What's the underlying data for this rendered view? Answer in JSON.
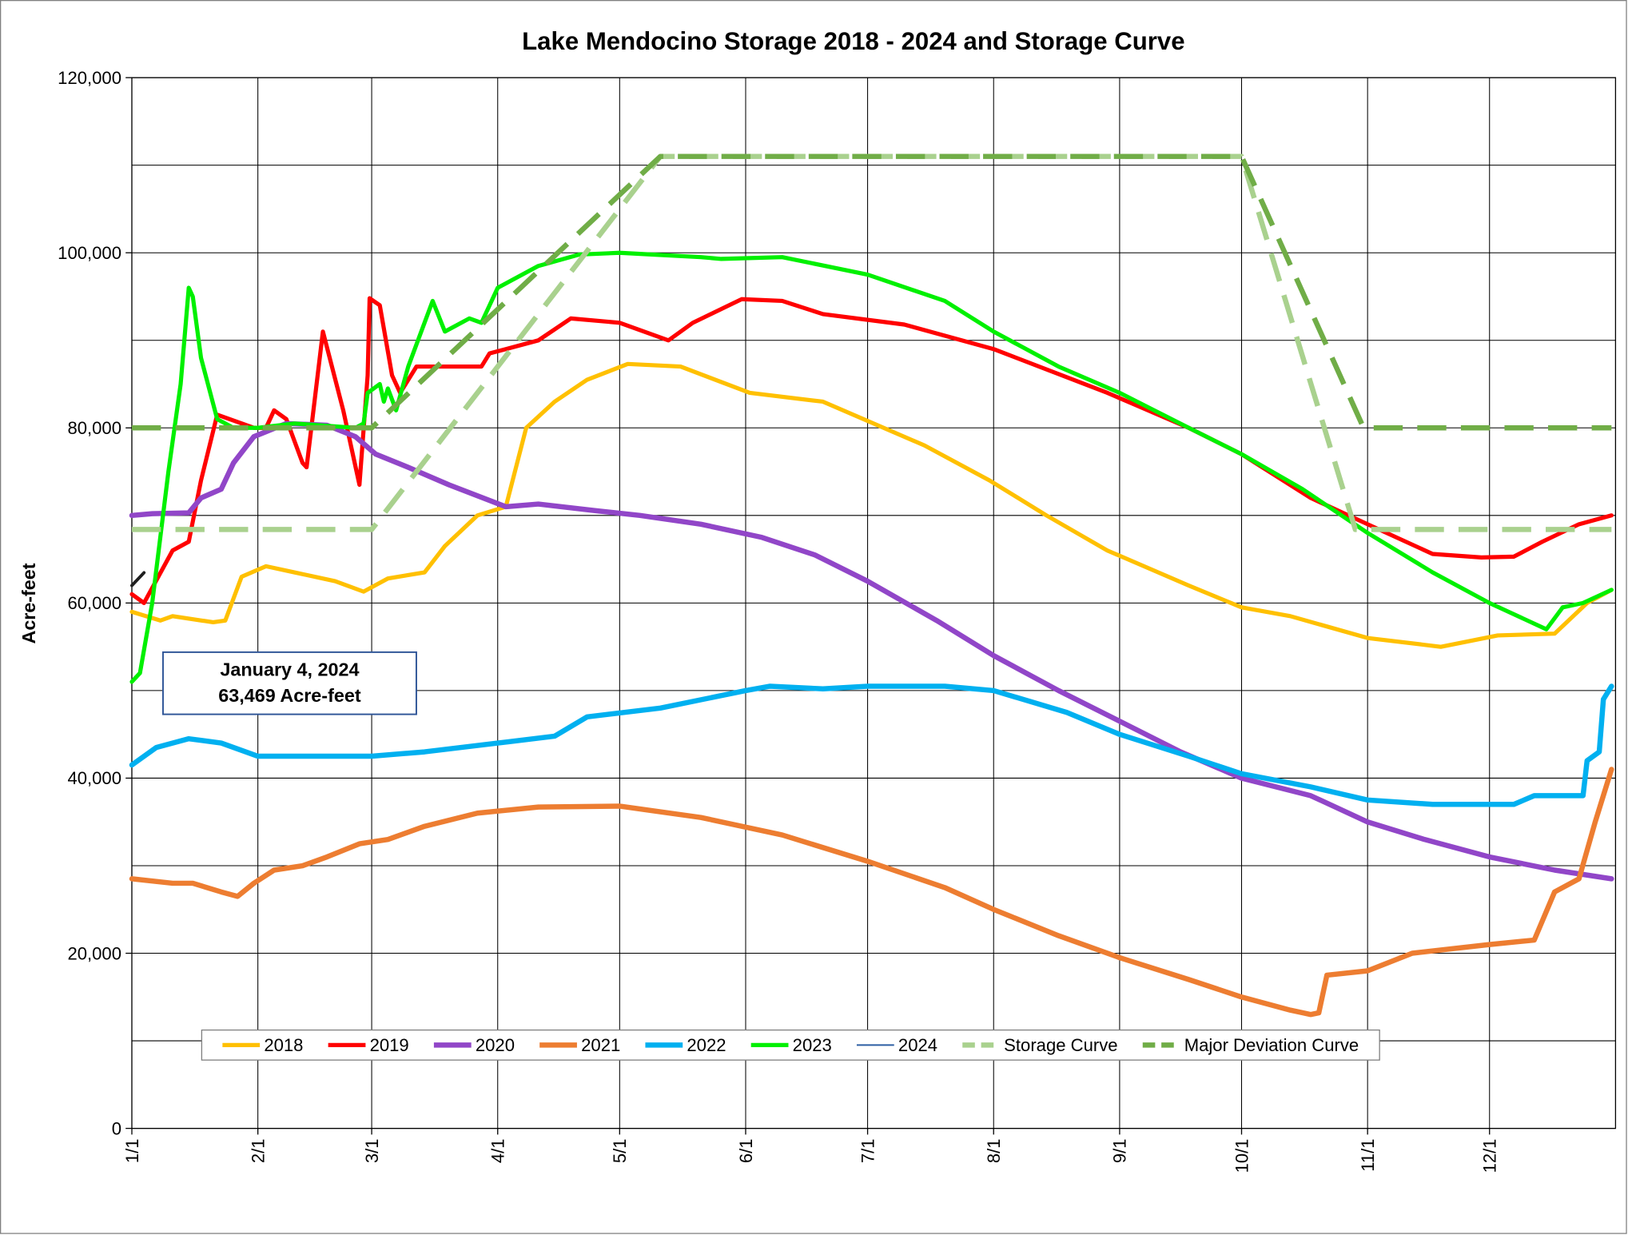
{
  "chart_data": {
    "type": "line",
    "title": "Lake Mendocino Storage 2018 - 2024 and Storage Curve",
    "y_label": "Acre-feet",
    "xlim": [
      0,
      365
    ],
    "xticks": [
      {
        "value": 0,
        "label": "1/1"
      },
      {
        "value": 31,
        "label": "2/1"
      },
      {
        "value": 59,
        "label": "3/1"
      },
      {
        "value": 90,
        "label": "4/1"
      },
      {
        "value": 120,
        "label": "5/1"
      },
      {
        "value": 151,
        "label": "6/1"
      },
      {
        "value": 181,
        "label": "7/1"
      },
      {
        "value": 212,
        "label": "8/1"
      },
      {
        "value": 243,
        "label": "9/1"
      },
      {
        "value": 273,
        "label": "10/1"
      },
      {
        "value": 304,
        "label": "11/1"
      },
      {
        "value": 334,
        "label": "12/1"
      }
    ],
    "ylim": [
      0,
      120000
    ],
    "yticks": [
      0,
      {
        "value": 20000,
        "label": "20,000"
      },
      {
        "value": 40000,
        "label": "40,000"
      },
      {
        "value": 60000,
        "label": "60,000"
      },
      {
        "value": 80000,
        "label": "80,000"
      },
      {
        "value": 100000,
        "label": "100,000"
      },
      {
        "value": 120000,
        "label": "120,000"
      }
    ],
    "minor_ygrid": [
      10000,
      30000,
      50000,
      70000,
      90000,
      110000
    ],
    "grid": true,
    "legend": "bottom",
    "annotation": {
      "date": "January 4, 2024",
      "text": "63,469 Acre-feet"
    },
    "series": [
      {
        "name": "2018",
        "color": "#ffc000",
        "width": 4,
        "x": [
          0,
          7,
          10,
          20,
          23,
          27,
          33,
          40,
          50,
          57,
          63,
          72,
          77,
          85,
          92,
          97,
          104,
          112,
          122,
          135,
          152,
          170,
          180,
          195,
          211,
          225,
          240,
          260,
          273,
          285,
          304,
          322,
          336,
          350,
          358,
          364
        ],
        "values": [
          59000,
          58000,
          58500,
          57800,
          58000,
          63000,
          64200,
          63500,
          62500,
          61300,
          62800,
          63500,
          66500,
          70000,
          71000,
          80000,
          83000,
          85500,
          87300,
          87000,
          84000,
          83000,
          81000,
          78000,
          74000,
          70000,
          66000,
          62000,
          59500,
          58500,
          56000,
          55000,
          56300,
          56500,
          60000,
          61500
        ]
      },
      {
        "name": "2019",
        "color": "#ff0000",
        "width": 4,
        "x": [
          0,
          3,
          10,
          14,
          17,
          21,
          30,
          33,
          35,
          38,
          42,
          43,
          47,
          52,
          56,
          58,
          58.5,
          61,
          64,
          66,
          70,
          80,
          86,
          88,
          92,
          100,
          108,
          120,
          132,
          138,
          150,
          160,
          170,
          190,
          212,
          240,
          260,
          273,
          290,
          304,
          320,
          332,
          340,
          347,
          356,
          364
        ],
        "values": [
          61000,
          60000,
          66000,
          67000,
          74000,
          81500,
          80000,
          80000,
          82000,
          81000,
          76000,
          75500,
          91000,
          82000,
          73500,
          86000,
          94800,
          94000,
          86000,
          84000,
          87000,
          87000,
          87000,
          88500,
          89000,
          90000,
          92500,
          92000,
          90000,
          92000,
          94700,
          94500,
          93000,
          91800,
          89000,
          84000,
          80000,
          77000,
          72000,
          69000,
          65600,
          65200,
          65300,
          67000,
          69000,
          70000
        ]
      },
      {
        "name": "2020",
        "color": "#9146c8",
        "width": 5,
        "x": [
          0,
          5,
          14,
          17,
          22,
          25,
          30,
          38,
          48,
          55,
          60,
          68,
          78,
          92,
          100,
          115,
          125,
          140,
          155,
          168,
          181,
          198,
          212,
          228,
          243,
          258,
          273,
          290,
          304,
          318,
          334,
          350,
          364
        ],
        "values": [
          70000,
          70200,
          70300,
          72000,
          73000,
          76000,
          79000,
          80500,
          80300,
          79000,
          77000,
          75500,
          73500,
          71000,
          71300,
          70500,
          70000,
          69000,
          67500,
          65500,
          62500,
          58000,
          54000,
          50000,
          46500,
          43000,
          40000,
          38000,
          35000,
          33000,
          31000,
          29500,
          28500
        ]
      },
      {
        "name": "2021",
        "color": "#ed7d31",
        "width": 5,
        "x": [
          0,
          10,
          15,
          22,
          26,
          30,
          35,
          42,
          48,
          56,
          63,
          72,
          85,
          100,
          120,
          140,
          160,
          181,
          200,
          212,
          228,
          243,
          260,
          273,
          285,
          290,
          292,
          294,
          304,
          315,
          334,
          345,
          350,
          356,
          360,
          364
        ],
        "values": [
          28500,
          28000,
          28000,
          27000,
          26500,
          28000,
          29500,
          30000,
          31000,
          32500,
          33000,
          34500,
          36000,
          36700,
          36800,
          35500,
          33500,
          30500,
          27500,
          25000,
          22000,
          19500,
          17000,
          15000,
          13500,
          13000,
          13200,
          17500,
          18000,
          20000,
          21000,
          21500,
          27000,
          28500,
          35000,
          41000
        ]
      },
      {
        "name": "2022",
        "color": "#00b0f0",
        "width": 5,
        "x": [
          0,
          6,
          14,
          22,
          31,
          50,
          59,
          72,
          90,
          104,
          112,
          130,
          151,
          157,
          170,
          181,
          200,
          212,
          230,
          243,
          260,
          273,
          290,
          304,
          320,
          340,
          345,
          357,
          358,
          361,
          362,
          364
        ],
        "values": [
          41500,
          43500,
          44500,
          44000,
          42500,
          42500,
          42500,
          43000,
          44000,
          44800,
          47000,
          48000,
          50000,
          50500,
          50200,
          50500,
          50500,
          50000,
          47500,
          45000,
          42500,
          40500,
          39000,
          37500,
          37000,
          37000,
          38000,
          38000,
          42000,
          43000,
          49000,
          50500
        ]
      },
      {
        "name": "2023",
        "color": "#00f000",
        "width": 4,
        "x": [
          0,
          2,
          5,
          9,
          12,
          14,
          15,
          17,
          21,
          25,
          31,
          40,
          55,
          57,
          58,
          61,
          62,
          63,
          65,
          68,
          74,
          77,
          83,
          86,
          90,
          100,
          110,
          120,
          140,
          145,
          160,
          181,
          200,
          212,
          228,
          243,
          260,
          273,
          288,
          304,
          320,
          334,
          348,
          352,
          357,
          364
        ],
        "values": [
          51000,
          52000,
          60000,
          75000,
          85000,
          96000,
          95000,
          88000,
          81000,
          80000,
          80000,
          80500,
          80000,
          80500,
          84000,
          85000,
          83000,
          84500,
          82000,
          87000,
          94500,
          91000,
          92500,
          92000,
          96000,
          98500,
          99800,
          100000,
          99500,
          99300,
          99500,
          97500,
          94500,
          91000,
          87000,
          84000,
          80000,
          77000,
          73000,
          68000,
          63500,
          60000,
          57000,
          59500,
          60000,
          61500
        ]
      },
      {
        "name": "2024",
        "color": "#1f1f1f",
        "width": 3,
        "legend_color": "#2e5fa3",
        "legend_width": 1.5,
        "x": [
          0,
          3
        ],
        "values": [
          62000,
          63469
        ]
      },
      {
        "name": "Storage Curve",
        "color": "#a9d18e",
        "width": 5,
        "dash": "28 14",
        "x": [
          0,
          59,
          130,
          273,
          301,
          364
        ],
        "values": [
          68400,
          68400,
          111000,
          111000,
          68400,
          68400
        ]
      },
      {
        "name": "Major Deviation Curve",
        "color": "#70ad47",
        "width": 5,
        "dash": "28 14",
        "x": [
          0,
          59,
          130,
          273,
          303,
          364
        ],
        "values": [
          80000,
          80000,
          111000,
          111000,
          80000,
          80000
        ]
      }
    ]
  }
}
